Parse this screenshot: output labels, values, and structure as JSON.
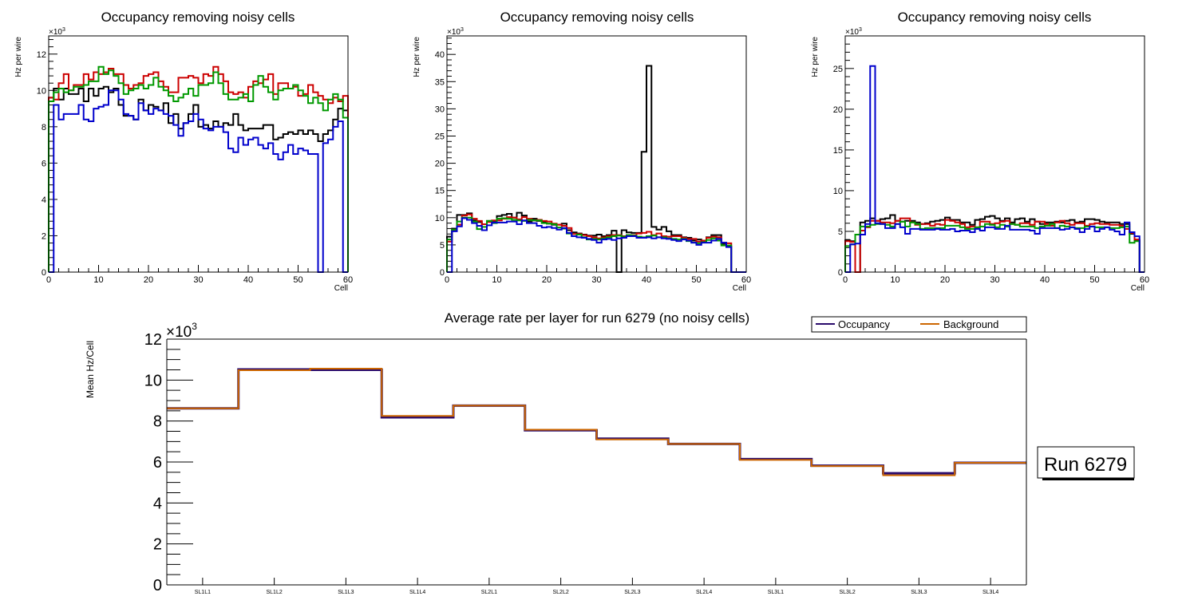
{
  "chart_data": [
    {
      "type": "step",
      "title": "Occupancy removing noisy cells",
      "xlabel": "Cell",
      "ylabel": "Hz per wire",
      "y_multiplier_label": "×10",
      "y_multiplier_exp": "3",
      "xlim": [
        0,
        60
      ],
      "ylim": [
        0,
        13
      ],
      "xticks": [
        0,
        10,
        20,
        30,
        40,
        50,
        60
      ],
      "yticks": [
        0,
        2,
        4,
        6,
        8,
        10,
        12
      ],
      "series": [
        {
          "name": "black",
          "color": "#000000",
          "values": [
            9.6,
            10.1,
            9.5,
            10.1,
            9.8,
            9.8,
            10.1,
            9.4,
            10.1,
            9.7,
            10.1,
            10.2,
            9.9,
            10.1,
            9.2,
            8.6,
            8.6,
            8.4,
            9.5,
            8.9,
            9.2,
            9.1,
            8.9,
            9.3,
            8.2,
            8.7,
            7.9,
            8.2,
            8.7,
            9.2,
            8.0,
            8.1,
            7.9,
            8.3,
            8.0,
            8.2,
            8.1,
            8.7,
            8.1,
            7.8,
            7.9,
            7.9,
            7.9,
            8.1,
            8.1,
            7.3,
            7.4,
            7.6,
            7.7,
            7.6,
            7.8,
            7.6,
            7.8,
            7.6,
            7.2,
            7.6,
            7.8,
            8.4,
            9.0,
            8.9
          ]
        },
        {
          "name": "red",
          "color": "#cc0000",
          "values": [
            9.6,
            9.5,
            10.4,
            10.9,
            10.0,
            10.3,
            10.3,
            10.9,
            10.6,
            11.0,
            10.9,
            11.0,
            11.2,
            10.9,
            10.9,
            10.3,
            10.1,
            10.3,
            10.4,
            10.8,
            10.9,
            11.0,
            10.5,
            10.2,
            9.9,
            9.9,
            10.7,
            10.7,
            10.8,
            10.7,
            10.4,
            10.9,
            10.8,
            11.3,
            10.9,
            10.5,
            9.9,
            9.8,
            9.9,
            9.6,
            10.2,
            10.5,
            10.4,
            10.6,
            10.9,
            9.8,
            10.4,
            10.4,
            10.1,
            10.2,
            9.7,
            9.8,
            10.3,
            9.9,
            9.7,
            9.5,
            9.3,
            9.6,
            9.4,
            9.7
          ]
        },
        {
          "name": "green",
          "color": "#009900",
          "values": [
            9.4,
            9.9,
            10.1,
            9.9,
            10.0,
            10.2,
            10.2,
            10.3,
            10.5,
            10.5,
            11.3,
            10.9,
            11.1,
            10.8,
            10.4,
            9.8,
            10.0,
            10.1,
            10.3,
            10.1,
            10.3,
            10.7,
            10.2,
            10.0,
            9.7,
            9.4,
            9.6,
            9.8,
            10.1,
            9.7,
            10.3,
            10.3,
            10.4,
            11.0,
            10.4,
            9.8,
            9.5,
            9.5,
            9.6,
            9.8,
            9.4,
            10.3,
            10.8,
            10.2,
            9.9,
            9.5,
            10.0,
            10.1,
            10.1,
            10.3,
            10.0,
            9.7,
            9.3,
            9.6,
            9.3,
            8.9,
            9.5,
            9.8,
            9.5,
            8.5
          ]
        },
        {
          "name": "blue",
          "color": "#0000cc",
          "values": [
            0,
            9.2,
            8.4,
            8.7,
            8.7,
            8.7,
            9.2,
            8.4,
            8.3,
            9.0,
            9.1,
            9.2,
            10.0,
            10.0,
            9.5,
            8.7,
            8.6,
            8.4,
            9.3,
            8.9,
            8.7,
            9.0,
            8.9,
            8.7,
            8.6,
            8.1,
            7.5,
            8.2,
            8.3,
            8.7,
            8.4,
            7.9,
            7.8,
            8.0,
            8.0,
            7.7,
            6.8,
            6.6,
            7.4,
            7.0,
            7.3,
            7.4,
            7.0,
            6.8,
            7.1,
            6.5,
            6.2,
            6.6,
            7.0,
            6.5,
            6.8,
            6.7,
            6.5,
            6.5,
            0,
            7.1,
            7.3,
            8.0,
            8.3,
            0
          ]
        }
      ]
    },
    {
      "type": "step",
      "title": "Occupancy removing noisy cells",
      "xlabel": "Cell",
      "ylabel": "Hz per wire",
      "y_multiplier_label": "×10",
      "y_multiplier_exp": "3",
      "xlim": [
        0,
        60
      ],
      "ylim": [
        0,
        43.4
      ],
      "xticks": [
        0,
        10,
        20,
        30,
        40,
        50,
        60
      ],
      "yticks": [
        0,
        5,
        10,
        15,
        20,
        25,
        30,
        35,
        40
      ],
      "series": [
        {
          "name": "black",
          "color": "#000000",
          "values": [
            6.5,
            8.0,
            10.5,
            10.5,
            10.8,
            9.5,
            9.2,
            8.8,
            9.4,
            9.4,
            10.3,
            10.5,
            10.7,
            10.0,
            10.9,
            10.4,
            9.3,
            9.8,
            9.4,
            9.2,
            8.9,
            8.7,
            8.7,
            8.9,
            7.7,
            7.3,
            7.1,
            6.9,
            6.7,
            6.7,
            6.9,
            6.6,
            6.8,
            7.6,
            0,
            7.7,
            7.3,
            7.2,
            7.2,
            22.1,
            37.9,
            8.3,
            7.8,
            8.3,
            7.5,
            6.8,
            6.8,
            6.4,
            6.3,
            5.8,
            6.0,
            5.6,
            6.4,
            6.8,
            6.8,
            5.2,
            4.7,
            0,
            0,
            0
          ]
        },
        {
          "name": "red",
          "color": "#cc0000",
          "values": [
            5.6,
            7.6,
            8.7,
            10.4,
            10.6,
            9.8,
            9.4,
            8.8,
            9.2,
            9.5,
            9.5,
            9.8,
            10.1,
            10.0,
            9.7,
            10.1,
            9.8,
            9.5,
            9.6,
            9.4,
            9.3,
            8.9,
            8.7,
            8.5,
            8.1,
            7.0,
            7.0,
            6.8,
            6.6,
            6.4,
            6.2,
            6.4,
            6.6,
            6.8,
            6.8,
            6.6,
            6.8,
            6.8,
            7.1,
            7.2,
            7.4,
            6.8,
            7.1,
            6.6,
            6.5,
            6.6,
            6.6,
            6.3,
            6.1,
            6.1,
            5.6,
            5.8,
            6.3,
            6.5,
            6.4,
            5.4,
            5.3,
            0,
            0,
            0
          ]
        },
        {
          "name": "green",
          "color": "#009900",
          "values": [
            6.0,
            7.8,
            9.3,
            10.0,
            10.0,
            9.3,
            7.9,
            8.3,
            9.4,
            9.0,
            9.8,
            9.9,
            9.8,
            9.6,
            9.5,
            9.4,
            9.6,
            9.5,
            9.5,
            9.0,
            8.9,
            8.8,
            8.2,
            8.0,
            7.1,
            6.6,
            6.9,
            6.4,
            6.0,
            6.1,
            6.0,
            6.2,
            6.4,
            6.6,
            6.7,
            6.5,
            6.8,
            6.7,
            6.5,
            6.4,
            6.6,
            6.7,
            6.4,
            6.4,
            6.2,
            6.1,
            6.0,
            6.1,
            5.7,
            5.4,
            5.3,
            5.5,
            5.9,
            6.2,
            5.8,
            4.9,
            4.9,
            0,
            0,
            0
          ]
        },
        {
          "name": "blue",
          "color": "#0000cc",
          "values": [
            0,
            7.5,
            8.4,
            9.9,
            9.6,
            9.0,
            8.5,
            7.7,
            8.6,
            9.1,
            9.1,
            9.1,
            9.3,
            9.3,
            8.8,
            9.5,
            9.0,
            9.0,
            8.5,
            8.2,
            8.3,
            8.1,
            7.8,
            8.1,
            7.2,
            6.6,
            6.4,
            6.3,
            6.1,
            5.9,
            5.4,
            6.0,
            6.1,
            5.9,
            6.2,
            6.3,
            6.6,
            6.6,
            6.3,
            6.3,
            6.4,
            6.2,
            6.4,
            6.2,
            6.1,
            5.9,
            5.7,
            6.0,
            5.8,
            5.4,
            5.0,
            5.4,
            5.4,
            5.8,
            6.1,
            5.4,
            4.6,
            0,
            0,
            0
          ]
        }
      ]
    },
    {
      "type": "step",
      "title": "Occupancy removing noisy cells",
      "xlabel": "Cell",
      "ylabel": "Hz per wire",
      "y_multiplier_label": "×10",
      "y_multiplier_exp": "3",
      "xlim": [
        0,
        60
      ],
      "ylim": [
        0,
        29
      ],
      "xticks": [
        0,
        10,
        20,
        30,
        40,
        50,
        60
      ],
      "yticks": [
        0,
        5,
        10,
        15,
        20,
        25
      ],
      "series": [
        {
          "name": "black",
          "color": "#000000",
          "values": [
            3.9,
            3.8,
            0,
            6.1,
            6.3,
            6.6,
            6.3,
            6.5,
            6.6,
            7.0,
            6.3,
            6.2,
            6.3,
            6.3,
            6.1,
            5.9,
            6.0,
            6.2,
            6.3,
            6.4,
            6.7,
            6.4,
            6.4,
            6.1,
            6.1,
            5.8,
            6.4,
            6.5,
            6.8,
            6.9,
            6.6,
            6.3,
            6.6,
            6.1,
            6.5,
            6.6,
            6.2,
            6.5,
            6.2,
            5.9,
            6.1,
            6.1,
            6.2,
            6.1,
            6.3,
            6.4,
            6.1,
            6.2,
            6.5,
            6.5,
            6.4,
            6.2,
            6.1,
            6.1,
            6.1,
            5.9,
            5.9,
            4.7,
            3.9,
            0
          ]
        },
        {
          "name": "red",
          "color": "#cc0000",
          "values": [
            3.8,
            3.7,
            0,
            5.1,
            5.5,
            6.3,
            6.3,
            6.1,
            6.1,
            6.0,
            6.3,
            6.6,
            6.6,
            6.1,
            5.8,
            5.9,
            5.9,
            5.7,
            5.9,
            5.8,
            6.4,
            6.3,
            6.1,
            5.9,
            5.5,
            5.6,
            5.5,
            6.2,
            6.2,
            5.9,
            6.0,
            6.2,
            6.3,
            5.9,
            5.8,
            6.0,
            6.0,
            5.8,
            6.2,
            6.2,
            5.9,
            5.7,
            6.1,
            6.3,
            6.0,
            5.8,
            6.0,
            6.0,
            5.7,
            5.9,
            6.0,
            5.9,
            5.9,
            5.8,
            5.8,
            5.7,
            5.3,
            4.8,
            4.0,
            0
          ]
        },
        {
          "name": "green",
          "color": "#009900",
          "values": [
            3.2,
            3.4,
            4.6,
            5.6,
            5.6,
            5.8,
            5.9,
            5.9,
            5.8,
            5.6,
            5.9,
            6.2,
            5.6,
            6.1,
            5.9,
            5.3,
            5.4,
            5.4,
            5.4,
            5.4,
            5.7,
            5.7,
            5.7,
            5.5,
            5.3,
            5.3,
            5.5,
            5.6,
            5.9,
            5.8,
            5.5,
            5.8,
            5.6,
            5.9,
            5.8,
            5.6,
            5.6,
            5.6,
            5.4,
            5.6,
            5.7,
            5.9,
            5.4,
            5.7,
            5.6,
            5.5,
            5.4,
            5.4,
            5.6,
            5.6,
            5.5,
            5.5,
            5.5,
            5.4,
            5.4,
            5.5,
            5.6,
            3.6,
            3.8,
            0
          ]
        },
        {
          "name": "blue",
          "color": "#0000cc",
          "values": [
            0,
            3.4,
            3.5,
            4.6,
            5.9,
            25.3,
            6.0,
            5.9,
            5.4,
            5.4,
            5.9,
            5.5,
            4.7,
            5.3,
            5.3,
            5.2,
            5.2,
            5.2,
            5.3,
            5.2,
            5.2,
            5.3,
            5.0,
            5.1,
            5.1,
            4.9,
            5.3,
            5.1,
            5.5,
            5.5,
            5.3,
            5.3,
            5.7,
            5.2,
            5.2,
            5.2,
            5.2,
            5.1,
            4.7,
            5.4,
            5.4,
            5.4,
            5.4,
            5.2,
            5.3,
            5.5,
            5.3,
            4.9,
            5.3,
            5.6,
            5.0,
            5.3,
            5.5,
            5.2,
            5.0,
            4.6,
            6.1,
            4.9,
            4.4,
            0
          ]
        }
      ]
    },
    {
      "type": "step",
      "title": "Average rate per layer for run 6279 (no noisy cells)",
      "xlabel": "",
      "ylabel": "Mean Hz/Cell",
      "y_multiplier_label": "×10",
      "y_multiplier_exp": "3",
      "ylim": [
        0,
        12
      ],
      "yticks": [
        0,
        2,
        4,
        6,
        8,
        10,
        12
      ],
      "categories": [
        "SL1L1",
        "SL1L2",
        "SL1L3",
        "SL1L4",
        "SL2L1",
        "SL2L2",
        "SL2L3",
        "SL2L4",
        "SL3L1",
        "SL3L2",
        "SL3L3",
        "SL3L4"
      ],
      "legend_position": "top-right",
      "series": [
        {
          "name": "Occupancy",
          "color": "#2a0a6b",
          "values": [
            8.62,
            10.52,
            10.5,
            8.18,
            8.75,
            7.55,
            7.14,
            6.88,
            6.14,
            5.82,
            5.45,
            5.96
          ]
        },
        {
          "name": "Background",
          "color": "#cc6600",
          "values": [
            8.62,
            10.48,
            10.56,
            8.25,
            8.75,
            7.58,
            7.1,
            6.88,
            6.1,
            5.8,
            5.35,
            5.96
          ]
        }
      ]
    }
  ],
  "annotation": {
    "label": "Run 6279"
  }
}
